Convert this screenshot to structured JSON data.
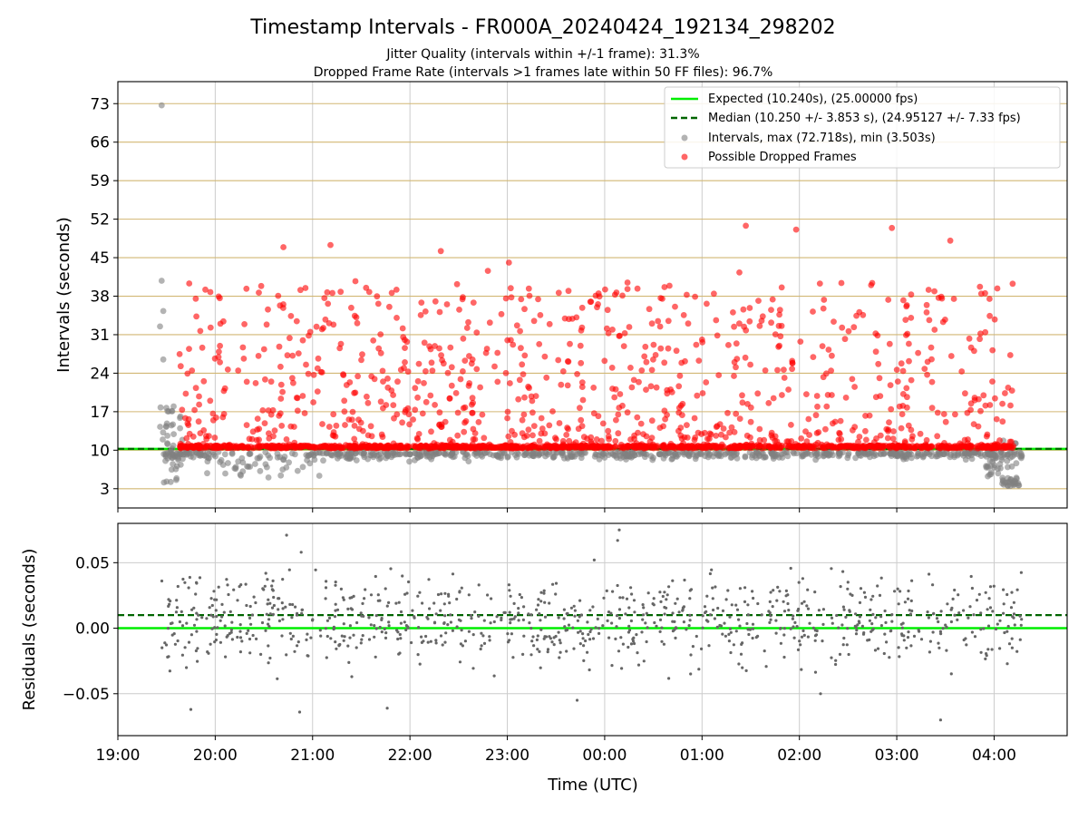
{
  "figure": {
    "title": "Timestamp Intervals - FR000A_20240424_192134_298202",
    "subtitle_1": "Jitter Quality (intervals within +/-1 frame): 31.3%",
    "subtitle_2": "Dropped Frame Rate (intervals >1 frames late within 50 FF files): 96.7%"
  },
  "colors": {
    "expected": "#00ee00",
    "median": "#006400",
    "intervals": "#808080",
    "dropped": "#ff0000",
    "hgrid_top": "#d2b773",
    "grid": "#cccccc"
  },
  "chart_data": [
    {
      "type": "scatter",
      "ylabel": "Intervals (seconds)",
      "xlim": [
        "19:00",
        "04:45"
      ],
      "ylim": [
        -0.5,
        77
      ],
      "yticks": [
        3,
        10,
        17,
        24,
        31,
        38,
        45,
        52,
        59,
        66,
        73
      ],
      "xticks": [
        "19:00",
        "20:00",
        "21:00",
        "22:00",
        "23:00",
        "00:00",
        "01:00",
        "02:00",
        "03:00",
        "04:00"
      ],
      "grid": true,
      "legend_position": "top-right",
      "legend": [
        "Expected (10.240s), (25.00000 fps)",
        "Median (10.250 +/- 3.853 s), (24.95127 +/- 7.33 fps)",
        "Intervals, max (72.718s), min (3.503s)",
        "Possible Dropped Frames"
      ],
      "series": [
        {
          "name": "Expected (10.240s), (25.00000 fps)",
          "kind": "hline",
          "value": 10.24
        },
        {
          "name": "Median (10.250 +/- 3.853 s), (24.95127 +/- 7.33 fps)",
          "kind": "hline-dashed",
          "value": 10.25
        },
        {
          "name": "Intervals, max (72.718s), min (3.503s)",
          "kind": "points",
          "max": 72.718,
          "min": 3.503,
          "notable_points": [
            [
              "19:27",
              72.7
            ],
            [
              "19:27",
              40.8
            ],
            [
              "19:28",
              35.3
            ],
            [
              "19:26",
              32.5
            ],
            [
              "19:28",
              26.5
            ],
            [
              "19:33",
              14.5
            ],
            [
              "19:30",
              4.3
            ],
            [
              "19:36",
              4.6
            ],
            [
              "04:10",
              3.5
            ],
            [
              "04:15",
              3.6
            ]
          ],
          "typical_range": [
            4,
            12
          ]
        },
        {
          "name": "Possible Dropped Frames",
          "kind": "points",
          "time_range": [
            "19:38",
            "04:12"
          ],
          "typical_range": [
            10.5,
            47
          ],
          "notable_points": [
            [
              "21:11",
              47.3
            ],
            [
              "20:42",
              46.9
            ],
            [
              "22:19",
              46.2
            ],
            [
              "23:01",
              44.1
            ],
            [
              "22:48",
              42.6
            ],
            [
              "01:23",
              42.3
            ],
            [
              "01:27",
              50.8
            ],
            [
              "01:58",
              50.1
            ],
            [
              "02:57",
              50.4
            ],
            [
              "03:33",
              48.1
            ],
            [
              "04:02",
              39.4
            ]
          ]
        }
      ]
    },
    {
      "type": "scatter",
      "ylabel": "Residuals (seconds)",
      "xlabel": "Time (UTC)",
      "xlim": [
        "19:00",
        "04:45"
      ],
      "ylim": [
        -0.082,
        0.08
      ],
      "yticks": [
        -0.05,
        0.0,
        0.05
      ],
      "ytick_labels": [
        "−0.05",
        "0.00",
        "0.05"
      ],
      "xticks": [
        "19:00",
        "20:00",
        "21:00",
        "22:00",
        "23:00",
        "00:00",
        "01:00",
        "02:00",
        "03:00",
        "04:00"
      ],
      "grid": true,
      "series": [
        {
          "kind": "hline",
          "value": 0.0,
          "color_key": "expected"
        },
        {
          "kind": "hline-dashed",
          "value": 0.01,
          "color_key": "median"
        },
        {
          "kind": "points",
          "time_range": [
            "19:27",
            "04:17"
          ],
          "typical_range": [
            -0.03,
            0.04
          ],
          "notable_points": [
            [
              "00:09",
              0.075
            ],
            [
              "00:08",
              0.067
            ],
            [
              "20:44",
              0.071
            ],
            [
              "20:53",
              0.058
            ],
            [
              "20:52",
              -0.064
            ],
            [
              "19:45",
              -0.062
            ],
            [
              "03:27",
              -0.07
            ],
            [
              "02:13",
              -0.05
            ],
            [
              "23:43",
              -0.055
            ],
            [
              "21:46",
              -0.061
            ]
          ]
        }
      ]
    }
  ]
}
